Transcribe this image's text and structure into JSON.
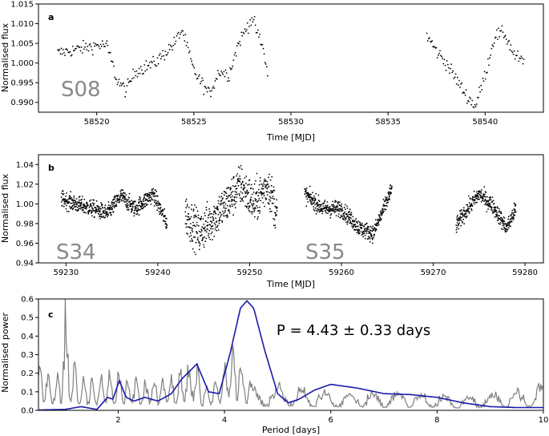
{
  "chart_data": [
    {
      "panel": "a",
      "type": "scatter",
      "xlabel": "Time [MJD]",
      "ylabel": "Normalised flux",
      "xlim": [
        58517,
        58543
      ],
      "ylim": [
        0.9875,
        1.015
      ],
      "xticks": [
        58520,
        58525,
        58530,
        58535,
        58540
      ],
      "yticks": [
        0.99,
        0.995,
        1.0,
        1.005,
        1.01,
        1.015
      ],
      "sector_label": "S08",
      "series": [
        {
          "color": "#000000",
          "segments": [
            {
              "t": [
                58518.0,
                58519.0,
                58520.0,
                58520.5,
                58520.8,
                58521.0,
                58521.5,
                58522.0,
                58523.0,
                58524.0,
                58524.4,
                58525.0,
                58525.8,
                58526.3,
                58526.8,
                58527.3,
                58528.0,
                58528.6,
                58528.8
              ],
              "f": [
                1.0025,
                1.0035,
                1.0045,
                1.0045,
                1.0,
                0.996,
                0.993,
                0.998,
                1.0,
                1.005,
                1.0085,
                0.998,
                0.992,
                0.998,
                0.997,
                1.005,
                1.0115,
                1.003,
                0.997
              ],
              "noise": 0.0016
            },
            {
              "t": [
                58537.0,
                58537.5,
                58538.0,
                58539.0,
                58539.5,
                58540.0,
                58540.5,
                58541.0,
                58541.5,
                58542.0
              ],
              "f": [
                1.007,
                1.003,
                1.0,
                0.992,
                0.989,
                0.997,
                1.007,
                1.0075,
                1.002,
                1.0
              ],
              "noise": 0.0016
            }
          ]
        }
      ]
    },
    {
      "panel": "b",
      "type": "scatter",
      "xlabel": "Time [MJD]",
      "ylabel": "Normalised flux",
      "xlim": [
        59227,
        59282
      ],
      "ylim": [
        0.94,
        1.05
      ],
      "xticks": [
        59230,
        59240,
        59250,
        59260,
        59270,
        59280
      ],
      "yticks": [
        0.94,
        0.96,
        0.98,
        1.0,
        1.02,
        1.04
      ],
      "sector_labels": [
        "S34",
        "S35"
      ],
      "series": [
        {
          "color": "#000000",
          "segments": [
            {
              "t": [
                59229.5,
                59231.0,
                59233.0,
                59234.5,
                59236.0,
                59237.5,
                59239.5,
                59241.0
              ],
              "f": [
                1.005,
                1.0,
                0.995,
                0.99,
                1.008,
                0.995,
                1.01,
                0.98
              ],
              "noise": 0.008
            },
            {
              "t": [
                59243.0,
                59244.5,
                59246.0,
                59247.5,
                59249.0,
                59250.5,
                59252.0,
                59253.0
              ],
              "f": [
                0.99,
                0.97,
                0.985,
                1.0,
                1.02,
                1.0,
                1.02,
                0.99
              ],
              "noise": 0.02
            },
            {
              "t": [
                59256.0,
                59258.0,
                59260.0,
                59262.0,
                59263.5,
                59265.5
              ],
              "f": [
                1.01,
                0.995,
                0.995,
                0.975,
                0.97,
                1.015
              ],
              "noise": 0.008
            },
            {
              "t": [
                59272.5,
                59273.5,
                59275.0,
                59276.5,
                59278.0,
                59279.0
              ],
              "f": [
                0.978,
                0.992,
                1.01,
                0.998,
                0.975,
                0.995
              ],
              "noise": 0.008
            }
          ]
        }
      ]
    },
    {
      "panel": "c",
      "type": "line",
      "xlabel": "Period [days]",
      "ylabel": "Normalised power",
      "xlim": [
        0.5,
        10
      ],
      "ylim": [
        0.0,
        0.6
      ],
      "xticks": [
        2,
        4,
        6,
        8,
        10
      ],
      "yticks": [
        0.0,
        0.1,
        0.2,
        0.3,
        0.4,
        0.5,
        0.6
      ],
      "annotation": "P = 4.43 ± 0.33 days",
      "series": [
        {
          "style": "periodogram",
          "color": "#808080",
          "x": [
            0.5,
            0.8,
            0.93,
            1.0,
            1.07,
            1.3,
            1.6,
            1.84,
            2.0,
            2.5,
            3.0,
            3.45,
            3.5,
            3.6,
            4.0,
            4.09,
            4.2,
            4.6,
            5.0,
            5.5,
            6.0,
            7.0,
            8.0,
            8.5,
            9.0,
            9.5,
            9.9
          ],
          "y": [
            0.26,
            0.2,
            0.22,
            0.61,
            0.34,
            0.21,
            0.18,
            0.26,
            0.21,
            0.18,
            0.2,
            0.3,
            0.27,
            0.14,
            0.28,
            0.44,
            0.38,
            0.11,
            0.16,
            0.13,
            0.12,
            0.11,
            0.1,
            0.08,
            0.1,
            0.12,
            0.15
          ]
        },
        {
          "style": "smoothed",
          "color": "#1a1aaa",
          "x": [
            0.5,
            1.0,
            1.3,
            1.6,
            1.8,
            1.9,
            2.02,
            2.15,
            2.3,
            2.5,
            2.75,
            3.0,
            3.2,
            3.48,
            3.7,
            3.9,
            4.1,
            4.3,
            4.42,
            4.55,
            4.75,
            5.0,
            5.2,
            5.4,
            5.7,
            6.0,
            6.5,
            7.0,
            7.5,
            8.0,
            8.5,
            9.0,
            9.5,
            10.0
          ],
          "y": [
            0.002,
            0.005,
            0.02,
            0.005,
            0.07,
            0.06,
            0.16,
            0.07,
            0.05,
            0.07,
            0.05,
            0.09,
            0.17,
            0.25,
            0.1,
            0.09,
            0.3,
            0.55,
            0.59,
            0.55,
            0.33,
            0.09,
            0.04,
            0.06,
            0.11,
            0.14,
            0.12,
            0.09,
            0.085,
            0.07,
            0.04,
            0.02,
            0.015,
            0.015
          ]
        }
      ]
    }
  ]
}
